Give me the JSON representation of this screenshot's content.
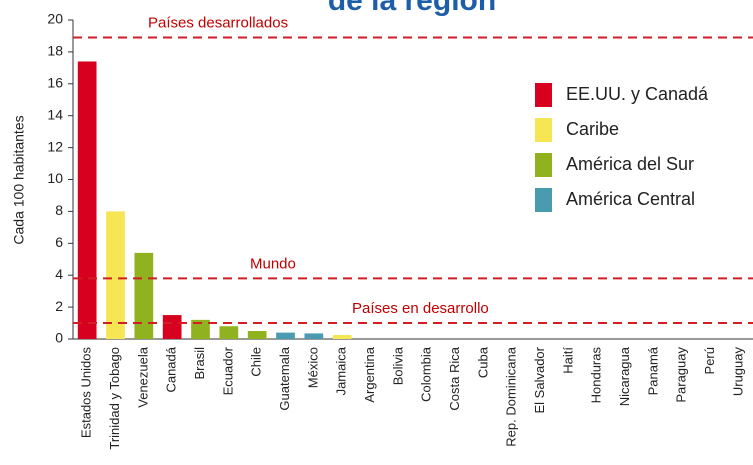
{
  "chart_data": {
    "type": "bar",
    "title": "de la región",
    "y_label": "Cada 100 habitantes",
    "categories": [
      "Estados Unidos",
      "Trinidad y Tobago",
      "Venezuela",
      "Canadá",
      "Brasil",
      "Ecuador",
      "Chile",
      "Guatemala",
      "México",
      "Jamaica",
      "Argentina",
      "Bolivia",
      "Colombia",
      "Costa Rica",
      "Cuba",
      "Rep. Dominicana",
      "El Salvador",
      "Haití",
      "Honduras",
      "Nicaragua",
      "Panamá",
      "Paraguay",
      "Perú",
      "Uruguay"
    ],
    "series": [
      {
        "name": "EE.UU. y Canadá",
        "color": "#d7001e",
        "values": [
          17.4,
          null,
          null,
          1.5,
          null,
          null,
          null,
          null,
          null,
          null,
          null,
          null,
          null,
          null,
          null,
          null,
          null,
          null,
          null,
          null,
          null,
          null,
          null,
          null
        ]
      },
      {
        "name": "Caribe",
        "color": "#f7e654",
        "values": [
          null,
          8.0,
          null,
          null,
          null,
          null,
          null,
          null,
          null,
          0.25,
          null,
          null,
          null,
          null,
          null,
          null,
          null,
          null,
          null,
          null,
          null,
          null,
          null,
          null
        ]
      },
      {
        "name": "América del Sur",
        "color": "#8fb21e",
        "values": [
          null,
          null,
          5.4,
          null,
          1.2,
          0.8,
          0.5,
          null,
          null,
          null,
          null,
          null,
          null,
          null,
          null,
          null,
          null,
          null,
          null,
          null,
          null,
          null,
          null,
          null
        ]
      },
      {
        "name": "América Central",
        "color": "#4a9bb0",
        "values": [
          null,
          null,
          null,
          null,
          null,
          null,
          null,
          0.4,
          0.35,
          null,
          null,
          null,
          null,
          null,
          null,
          null,
          null,
          null,
          null,
          null,
          null,
          null,
          null,
          null
        ]
      }
    ],
    "reference_lines": [
      {
        "label": "Países desarrollados",
        "value": 18.9
      },
      {
        "label": "Mundo",
        "value": 3.8
      },
      {
        "label": "Países en desarrollo",
        "value": 1.0
      }
    ],
    "reference_color": "#d01e24",
    "ylim": [
      0,
      20
    ],
    "yticks": [
      0,
      2,
      4,
      6,
      8,
      10,
      12,
      14,
      16,
      18,
      20
    ]
  }
}
